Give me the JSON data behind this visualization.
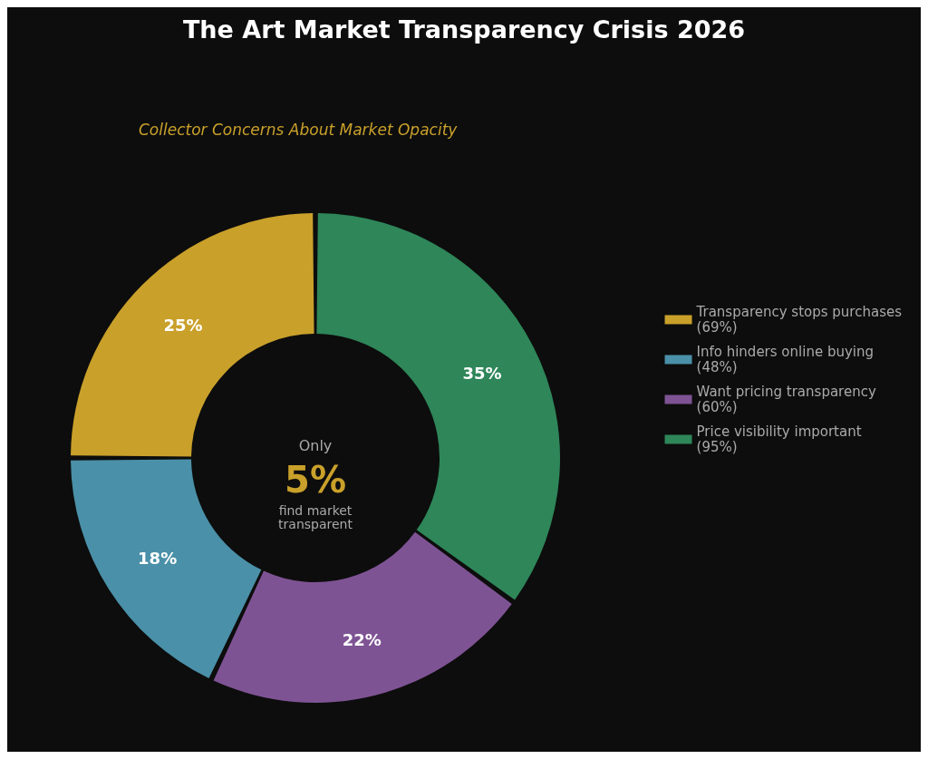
{
  "chart_data": {
    "type": "donut",
    "title": "The Art Market Transparency Crisis 2026",
    "subtitle": "Collector Concerns About Market Opacity",
    "categories": [
      "Transparency stops purchases\n(69%)",
      "Info hinders online buying\n(48%)",
      "Want pricing transparency\n(60%)",
      "Price visibility important\n(95%)"
    ],
    "values": [
      25,
      18,
      22,
      35
    ],
    "colors": [
      "#c9a02a",
      "#4a90a8",
      "#7e5394",
      "#2e8659"
    ],
    "value_labels": [
      "25%",
      "18%",
      "22%",
      "35%"
    ],
    "legend": "right",
    "annotations": [
      "Only",
      "5%",
      "find market\ntransparent"
    ]
  }
}
